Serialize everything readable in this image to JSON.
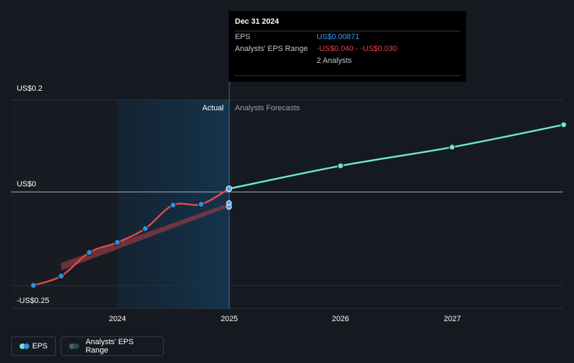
{
  "chart_data": {
    "type": "line",
    "x_ticks": [
      "2024",
      "2025",
      "2026",
      "2027"
    ],
    "y_labels": [
      "US$0.2",
      "US$0",
      "-US$0.25"
    ],
    "region_labels": {
      "actual": "Actual",
      "forecast": "Analysts Forecasts"
    },
    "series": [
      {
        "name": "EPS",
        "points": [
          [
            "2023-04-01",
            -0.25
          ],
          [
            "2023-07-01",
            -0.225
          ],
          [
            "2023-10-01",
            -0.162
          ],
          [
            "2024-01-01",
            -0.135
          ],
          [
            "2024-04-01",
            -0.098
          ],
          [
            "2024-07-01",
            -0.035
          ],
          [
            "2024-10-01",
            -0.033
          ],
          [
            "2024-12-31",
            0.00871
          ]
        ]
      },
      {
        "name": "EPS Forecast",
        "points": [
          [
            "2024-12-31",
            0.00871
          ],
          [
            "2025-12-31",
            0.07
          ],
          [
            "2026-12-31",
            0.12
          ],
          [
            "2027-12-31",
            0.18
          ]
        ]
      },
      {
        "name": "Analysts' EPS Range",
        "points": [
          [
            "2023-07-01",
            -0.21,
            -0.19
          ],
          [
            "2024-12-31",
            -0.04,
            -0.03
          ]
        ]
      }
    ],
    "colors": {
      "eps_actual": "#e04a4a",
      "eps_forecast": "#6ee7d2",
      "eps_dots": "#2f8fe0",
      "range": "#8a3a44"
    }
  },
  "tooltip": {
    "date": "Dec 31 2024",
    "rows": [
      {
        "label": "EPS",
        "value": "US$0.00871",
        "color": "#3b9cf0"
      },
      {
        "label": "Analysts' EPS Range",
        "value": "-US$0.040 - -US$0.030",
        "color": "#f0404a"
      },
      {
        "label": "",
        "value": "2 Analysts",
        "color": "#c2c7cf"
      }
    ]
  },
  "legend": [
    {
      "label": "EPS",
      "icon": "two-dot-icon",
      "colors": [
        "#6ee7d2",
        "#2f8fe0"
      ]
    },
    {
      "label": "Analysts' EPS Range",
      "icon": "two-dot-icon",
      "colors": [
        "#3d6570",
        "#2a4a5a"
      ]
    }
  ]
}
